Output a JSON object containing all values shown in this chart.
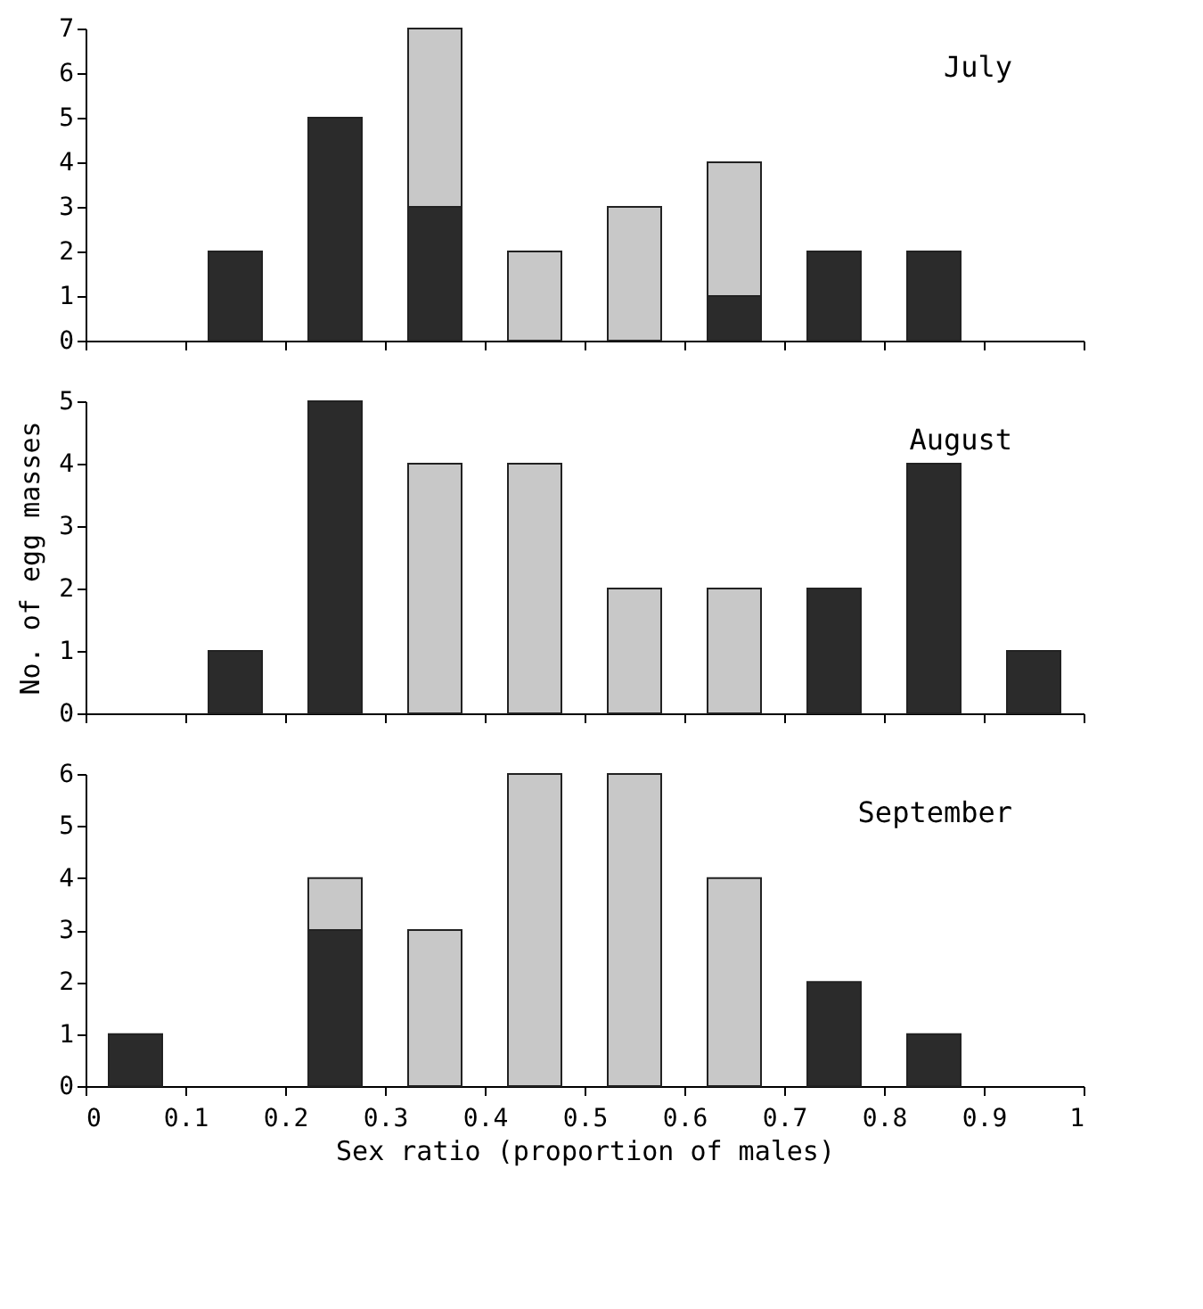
{
  "chart_data": [
    {
      "type": "bar",
      "stacked": true,
      "annotations": [
        "July"
      ],
      "x": [
        0.05,
        0.15,
        0.25,
        0.35,
        0.45,
        0.55,
        0.65,
        0.75,
        0.85,
        0.95
      ],
      "xlim": [
        0,
        1
      ],
      "xticks": [
        0,
        0.1,
        0.2,
        0.3,
        0.4,
        0.5,
        0.6,
        0.7,
        0.8,
        0.9,
        1
      ],
      "ylim": [
        0,
        7
      ],
      "yticks": [
        0,
        1,
        2,
        3,
        4,
        5,
        6,
        7
      ],
      "tick_labels": "y",
      "grid": false,
      "legend": false,
      "series": [
        {
          "color": "#2b2b2b",
          "values": [
            0,
            2,
            5,
            3,
            0,
            0,
            1,
            2,
            2,
            0
          ]
        },
        {
          "color": "#c8c8c8",
          "values": [
            0,
            0,
            0,
            4,
            2,
            3,
            3,
            0,
            0,
            0
          ]
        }
      ]
    },
    {
      "type": "bar",
      "stacked": true,
      "annotations": [
        "August"
      ],
      "ylabel": "No. of egg masses",
      "x": [
        0.05,
        0.15,
        0.25,
        0.35,
        0.45,
        0.55,
        0.65,
        0.75,
        0.85,
        0.95
      ],
      "xlim": [
        0,
        1
      ],
      "xticks": [
        0,
        0.1,
        0.2,
        0.3,
        0.4,
        0.5,
        0.6,
        0.7,
        0.8,
        0.9,
        1
      ],
      "ylim": [
        0,
        5
      ],
      "yticks": [
        0,
        1,
        2,
        3,
        4,
        5
      ],
      "tick_labels": "y",
      "grid": false,
      "legend": false,
      "series": [
        {
          "color": "#2b2b2b",
          "values": [
            0,
            1,
            5,
            0,
            0,
            0,
            0,
            2,
            4,
            1
          ]
        },
        {
          "color": "#c8c8c8",
          "values": [
            0,
            0,
            0,
            4,
            4,
            2,
            2,
            0,
            0,
            0
          ]
        }
      ]
    },
    {
      "type": "bar",
      "stacked": true,
      "annotations": [
        "September"
      ],
      "xlabel": "Sex ratio (proportion of males)",
      "x": [
        0.05,
        0.15,
        0.25,
        0.35,
        0.45,
        0.55,
        0.65,
        0.75,
        0.85,
        0.95
      ],
      "xlim": [
        0,
        1
      ],
      "xticks": [
        0,
        0.1,
        0.2,
        0.3,
        0.4,
        0.5,
        0.6,
        0.7,
        0.8,
        0.9,
        1
      ],
      "ylim": [
        0,
        6
      ],
      "yticks": [
        0,
        1,
        2,
        3,
        4,
        5,
        6
      ],
      "grid": false,
      "legend": false,
      "series": [
        {
          "color": "#2b2b2b",
          "values": [
            1,
            0,
            3,
            0,
            0,
            0,
            0,
            2,
            1,
            0
          ]
        },
        {
          "color": "#c8c8c8",
          "values": [
            0,
            0,
            1,
            3,
            6,
            6,
            4,
            0,
            0,
            0
          ]
        }
      ]
    }
  ]
}
